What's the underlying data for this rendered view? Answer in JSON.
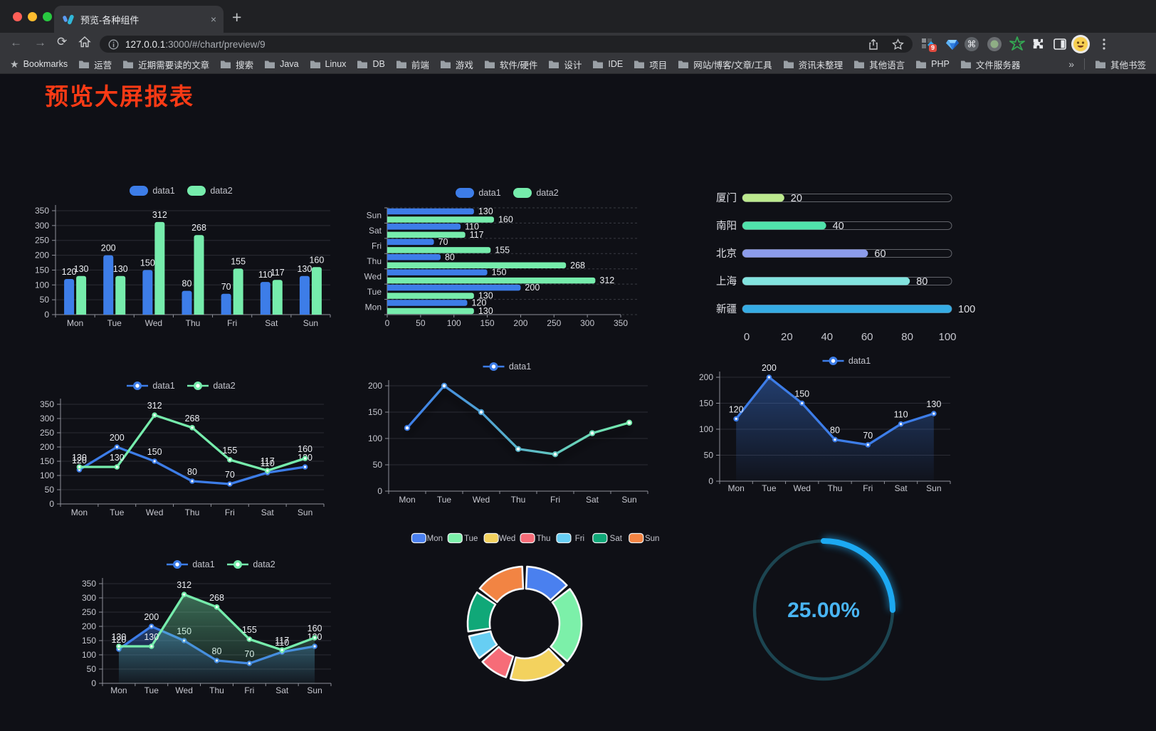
{
  "browser": {
    "tab": {
      "title": "预览-各种组件",
      "close": "×",
      "new_tab": "+"
    },
    "traffic_lights": [
      "#ff5f57",
      "#febc2e",
      "#28c840"
    ],
    "url": {
      "host": "127.0.0.1",
      "rest": ":3000/#/chart/preview/9"
    },
    "extension_badge": "9",
    "extension_icons": [
      "grid-diamond-icon",
      "gem-icon",
      "command-circle-icon",
      "recorder-circle-icon",
      "green-star-icon",
      "puzzle-icon",
      "sidebar-icon",
      "avatar-emoji",
      "menu-dots-icon"
    ],
    "bookmarks_label": "Bookmarks",
    "bookmarks": [
      "运营",
      "近期需要读的文章",
      "搜索",
      "Java",
      "Linux",
      "DB",
      "前端",
      "游戏",
      "软件/硬件",
      "设计",
      "IDE",
      "项目",
      "网站/博客/文章/工具",
      "资讯未整理",
      "其他语言",
      "PHP",
      "文件服务器"
    ],
    "bookmarks_overflow": "»",
    "other_bookmarks": "其他书签"
  },
  "page": {
    "title": "预览大屏报表",
    "title_color": "#fb3a15",
    "background": "#0f1016"
  },
  "chart_data": [
    {
      "id": "bar-grouped",
      "type": "bar",
      "categories": [
        "Mon",
        "Tue",
        "Wed",
        "Thu",
        "Fri",
        "Sat",
        "Sun"
      ],
      "series": [
        {
          "name": "data1",
          "color": "#3d7de8",
          "values": [
            120,
            200,
            150,
            80,
            70,
            110,
            130
          ]
        },
        {
          "name": "data2",
          "color": "#76ecac",
          "values": [
            130,
            130,
            312,
            268,
            155,
            117,
            160
          ]
        }
      ],
      "ylim": [
        0,
        350
      ],
      "yticks": [
        0,
        50,
        100,
        150,
        200,
        250,
        300,
        350
      ],
      "labels": true,
      "grid": true,
      "legend_position": "top"
    },
    {
      "id": "bar-horizontal",
      "type": "bar-horizontal",
      "categories": [
        "Mon",
        "Tue",
        "Wed",
        "Thu",
        "Fri",
        "Sat",
        "Sun"
      ],
      "series": [
        {
          "name": "data1",
          "color": "#3d7de8",
          "values": [
            120,
            200,
            150,
            80,
            70,
            110,
            130
          ]
        },
        {
          "name": "data2",
          "color": "#76ecac",
          "values": [
            130,
            130,
            312,
            268,
            155,
            117,
            160
          ]
        }
      ],
      "xlim": [
        0,
        350
      ],
      "xticks": [
        0,
        50,
        100,
        150,
        200,
        250,
        300,
        350
      ],
      "labels": true,
      "legend_position": "top"
    },
    {
      "id": "capsule",
      "type": "capsule",
      "rows": [
        {
          "label": "厦门",
          "value": 20,
          "color": "#bce98e"
        },
        {
          "label": "南阳",
          "value": 40,
          "color": "#50e2ab"
        },
        {
          "label": "北京",
          "value": 60,
          "color": "#8c9ceb"
        },
        {
          "label": "上海",
          "value": 80,
          "color": "#82e3df"
        },
        {
          "label": "新疆",
          "value": 100,
          "color": "#36ace4"
        }
      ],
      "xlim": [
        0,
        100
      ],
      "xticks": [
        0,
        20,
        40,
        60,
        80,
        100
      ]
    },
    {
      "id": "line-two",
      "type": "line",
      "categories": [
        "Mon",
        "Tue",
        "Wed",
        "Thu",
        "Fri",
        "Sat",
        "Sun"
      ],
      "series": [
        {
          "name": "data1",
          "color": "#3d7de8",
          "values": [
            120,
            200,
            150,
            80,
            70,
            110,
            130
          ]
        },
        {
          "name": "data2",
          "color": "#76ecac",
          "values": [
            130,
            130,
            312,
            268,
            155,
            117,
            160
          ]
        }
      ],
      "ylim": [
        0,
        350
      ],
      "yticks": [
        0,
        50,
        100,
        150,
        200,
        250,
        300,
        350
      ],
      "labels": true,
      "legend_position": "top"
    },
    {
      "id": "line-gradient",
      "type": "line",
      "categories": [
        "Mon",
        "Tue",
        "Wed",
        "Thu",
        "Fri",
        "Sat",
        "Sun"
      ],
      "series": [
        {
          "name": "data1",
          "color": "#3d7de8",
          "values": [
            120,
            200,
            150,
            80,
            70,
            110,
            130
          ]
        }
      ],
      "gradient": [
        "#3d7de8",
        "#76ecac"
      ],
      "shadow": true,
      "ylim": [
        0,
        200
      ],
      "yticks": [
        0,
        50,
        100,
        150,
        200
      ],
      "labels": false,
      "legend_position": "top"
    },
    {
      "id": "area-single",
      "type": "area",
      "categories": [
        "Mon",
        "Tue",
        "Wed",
        "Thu",
        "Fri",
        "Sat",
        "Sun"
      ],
      "series": [
        {
          "name": "data1",
          "color": "#3d7de8",
          "values": [
            120,
            200,
            150,
            80,
            70,
            110,
            130
          ]
        }
      ],
      "ylim": [
        0,
        200
      ],
      "yticks": [
        0,
        50,
        100,
        150,
        200
      ],
      "labels": true,
      "legend_position": "top"
    },
    {
      "id": "area-double",
      "type": "area",
      "categories": [
        "Mon",
        "Tue",
        "Wed",
        "Thu",
        "Fri",
        "Sat",
        "Sun"
      ],
      "series": [
        {
          "name": "data1",
          "color": "#3d7de8",
          "values": [
            120,
            200,
            150,
            80,
            70,
            110,
            130
          ]
        },
        {
          "name": "data2",
          "color": "#76ecac",
          "values": [
            130,
            130,
            312,
            268,
            155,
            117,
            160
          ]
        }
      ],
      "ylim": [
        0,
        350
      ],
      "yticks": [
        0,
        50,
        100,
        150,
        200,
        250,
        300,
        350
      ],
      "labels": true,
      "legend_position": "top"
    },
    {
      "id": "donut",
      "type": "pie",
      "items": [
        {
          "label": "Mon",
          "value": 120,
          "color": "#4a80ef"
        },
        {
          "label": "Tue",
          "value": 200,
          "color": "#7cf0a9"
        },
        {
          "label": "Wed",
          "value": 150,
          "color": "#f3d25e"
        },
        {
          "label": "Thu",
          "value": 80,
          "color": "#f66c78"
        },
        {
          "label": "Fri",
          "value": 70,
          "color": "#67cef3"
        },
        {
          "label": "Sat",
          "value": 110,
          "color": "#10a878"
        },
        {
          "label": "Sun",
          "value": 130,
          "color": "#f28443"
        }
      ],
      "inner_radius_ratio": 0.61,
      "legend_position": "top"
    },
    {
      "id": "gauge",
      "type": "gauge",
      "value": 25,
      "display": "25.00%",
      "color": "#1ca9f2",
      "track_color": "#1c4551",
      "text_color": "#49b5f3",
      "start": "top",
      "direction": "clockwise"
    }
  ]
}
